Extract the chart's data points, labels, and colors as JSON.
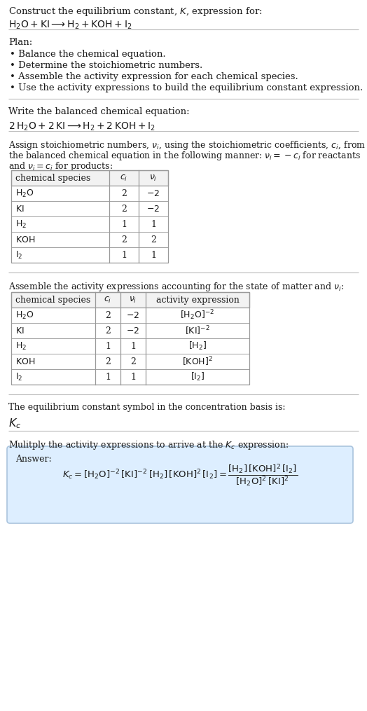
{
  "bg_color": "#ffffff",
  "text_color": "#1a1a1a",
  "title_line1": "Construct the equilibrium constant, $K$, expression for:",
  "title_line2": "$\\mathrm{H_2O + KI} \\longrightarrow \\mathrm{H_2 + KOH + I_2}$",
  "plan_header": "Plan:",
  "plan_items": [
    "• Balance the chemical equation.",
    "• Determine the stoichiometric numbers.",
    "• Assemble the activity expression for each chemical species.",
    "• Use the activity expressions to build the equilibrium constant expression."
  ],
  "balanced_header": "Write the balanced chemical equation:",
  "balanced_eq": "$\\mathrm{2\\,H_2O + 2\\,KI} \\longrightarrow \\mathrm{H_2 + 2\\,KOH + I_2}$",
  "stoich_line1": "Assign stoichiometric numbers, $\\nu_i$, using the stoichiometric coefficients, $c_i$, from",
  "stoich_line2": "the balanced chemical equation in the following manner: $\\nu_i = -c_i$ for reactants",
  "stoich_line3": "and $\\nu_i = c_i$ for products:",
  "table1_cols": [
    "chemical species",
    "$c_i$",
    "$\\nu_i$"
  ],
  "table1_rows": [
    [
      "$\\mathrm{H_2O}$",
      "2",
      "$-2$"
    ],
    [
      "$\\mathrm{KI}$",
      "2",
      "$-2$"
    ],
    [
      "$\\mathrm{H_2}$",
      "1",
      "1"
    ],
    [
      "$\\mathrm{KOH}$",
      "2",
      "2"
    ],
    [
      "$\\mathrm{I_2}$",
      "1",
      "1"
    ]
  ],
  "activity_header": "Assemble the activity expressions accounting for the state of matter and $\\nu_i$:",
  "table2_cols": [
    "chemical species",
    "$c_i$",
    "$\\nu_i$",
    "activity expression"
  ],
  "table2_rows": [
    [
      "$\\mathrm{H_2O}$",
      "2",
      "$-2$",
      "$[\\mathrm{H_2O}]^{-2}$"
    ],
    [
      "$\\mathrm{KI}$",
      "2",
      "$-2$",
      "$[\\mathrm{KI}]^{-2}$"
    ],
    [
      "$\\mathrm{H_2}$",
      "1",
      "1",
      "$[\\mathrm{H_2}]$"
    ],
    [
      "$\\mathrm{KOH}$",
      "2",
      "2",
      "$[\\mathrm{KOH}]^2$"
    ],
    [
      "$\\mathrm{I_2}$",
      "1",
      "1",
      "$[\\mathrm{I_2}]$"
    ]
  ],
  "kc_header": "The equilibrium constant symbol in the concentration basis is:",
  "kc_symbol": "$K_c$",
  "multiply_header": "Mulitply the activity expressions to arrive at the $K_c$ expression:",
  "answer_label": "Answer:",
  "answer_box_color": "#ddeeff",
  "answer_box_edge": "#aac4dd",
  "separator_color": "#bbbbbb",
  "table_border_color": "#999999",
  "table_header_bg": "#f2f2f2"
}
